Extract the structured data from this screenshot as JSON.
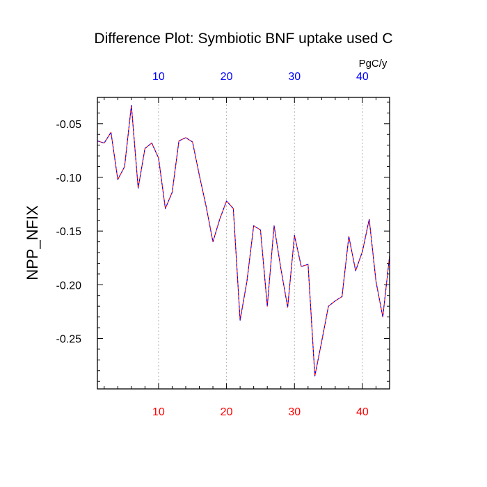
{
  "chart_data": {
    "type": "line",
    "title": "Difference Plot: Symbiotic BNF uptake used C",
    "ylabel": "NPP_NFIX",
    "xlabel": "",
    "units_label": "PgC/y",
    "xlim": [
      1,
      44
    ],
    "ylim": [
      -0.297,
      -0.0255
    ],
    "x_ticks": [
      10,
      20,
      30,
      40
    ],
    "x_tick_labels": [
      "10",
      "20",
      "30",
      "40"
    ],
    "y_ticks": [
      -0.05,
      -0.1,
      -0.15,
      -0.2,
      -0.25
    ],
    "y_tick_labels": [
      "-0.05",
      "-0.10",
      "-0.15",
      "-0.20",
      "-0.25"
    ],
    "x_minor_step": 2,
    "y_minor_step": 0.01,
    "grid": "vertical dotted at major x ticks",
    "legend": "none",
    "colors": {
      "bottom_tick_labels": "#ff0000",
      "top_tick_labels": "#0000ff",
      "series_dash_a": "#ff0000",
      "series_dash_b": "#0000ff",
      "axes": "#000000",
      "grid": "#b4b4b4"
    },
    "series": [
      {
        "x": [
          1,
          2,
          3,
          4,
          5,
          6,
          7,
          8,
          9,
          10,
          11,
          12,
          13,
          14,
          15,
          16,
          17,
          18,
          19,
          20,
          21,
          22,
          23,
          24,
          25,
          26,
          27,
          28,
          29,
          30,
          31,
          32,
          33,
          34,
          35,
          36,
          37,
          38,
          39,
          40,
          41,
          42,
          43,
          44
        ],
        "values": [
          -0.066,
          -0.068,
          -0.058,
          -0.102,
          -0.09,
          -0.033,
          -0.11,
          -0.073,
          -0.068,
          -0.082,
          -0.129,
          -0.114,
          -0.066,
          -0.063,
          -0.067,
          -0.098,
          -0.127,
          -0.16,
          -0.139,
          -0.122,
          -0.129,
          -0.233,
          -0.197,
          -0.145,
          -0.149,
          -0.22,
          -0.145,
          -0.185,
          -0.221,
          -0.154,
          -0.183,
          -0.181,
          -0.285,
          -0.253,
          -0.22,
          -0.215,
          -0.211,
          -0.155,
          -0.187,
          -0.169,
          -0.139,
          -0.197,
          -0.23,
          -0.173
        ]
      }
    ]
  }
}
